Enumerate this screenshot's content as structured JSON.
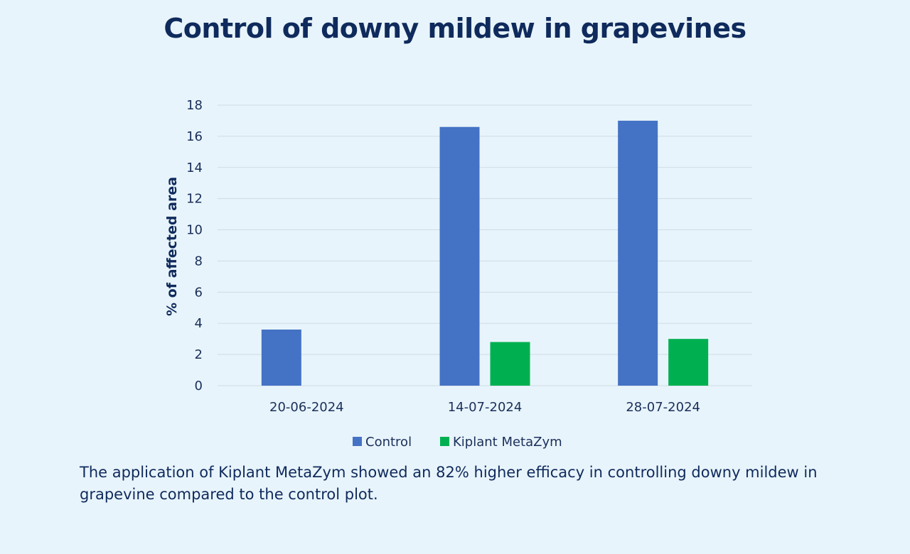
{
  "title": "Control of downy mildew in grapevines",
  "caption": "The application of Kiplant MetaZym showed an 82% higher efficacy in controlling downy mildew in grapevine compared to the control plot.",
  "chart_data": {
    "type": "bar",
    "title": "Control of downy mildew in grapevines",
    "xlabel": "",
    "ylabel": "% of affected area",
    "ylim": [
      0,
      18
    ],
    "yticks": [
      "0",
      "2",
      "4",
      "6",
      "8",
      "10",
      "12",
      "14",
      "16",
      "18"
    ],
    "grid": true,
    "legend_position": "bottom",
    "categories": [
      "20-06-2024",
      "14-07-2024",
      "28-07-2024"
    ],
    "series": [
      {
        "name": "Control",
        "color": "#4472c4",
        "values": [
          3.6,
          16.6,
          17.0
        ]
      },
      {
        "name": "Kiplant MetaZym",
        "color": "#00b050",
        "values": [
          0,
          2.8,
          3.0
        ]
      }
    ]
  }
}
